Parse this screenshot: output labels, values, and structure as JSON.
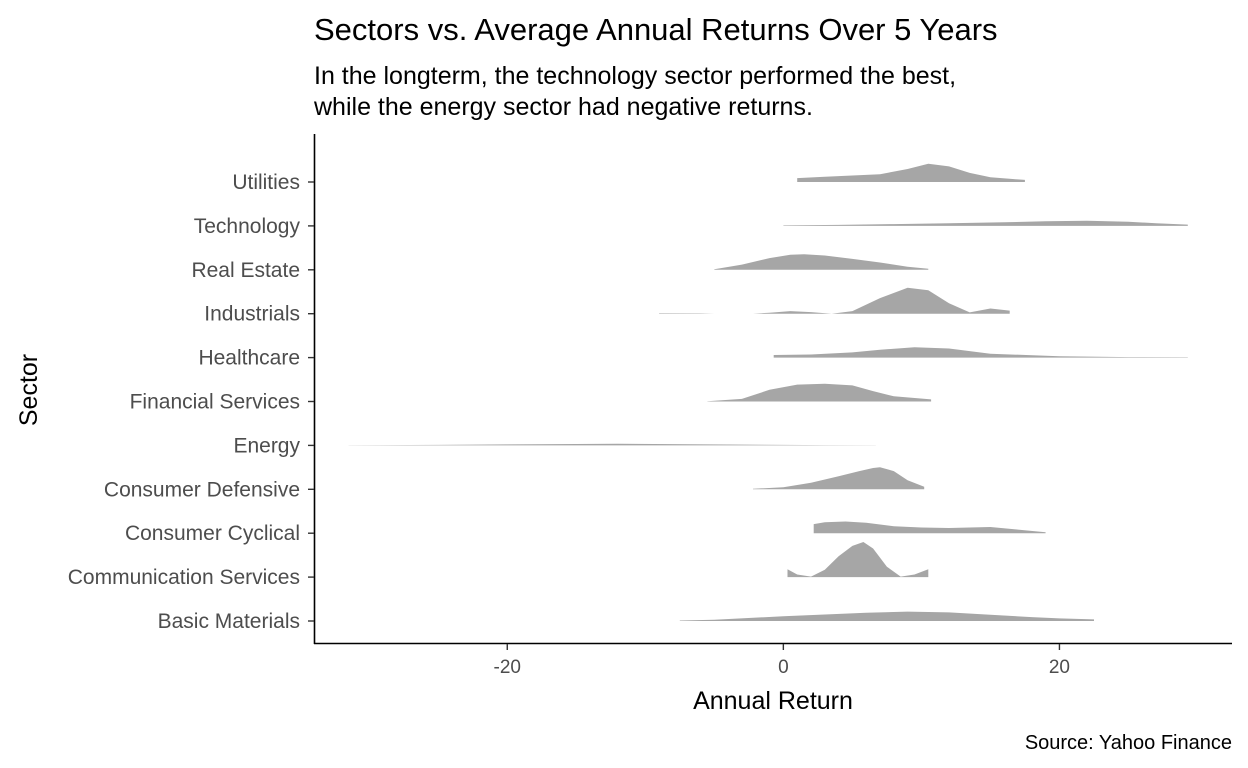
{
  "chart_data": {
    "type": "ridgeline",
    "title": "Sectors vs. Average Annual Returns Over 5 Years",
    "subtitle_lines": [
      "In the longterm, the technology sector performed the best,",
      "while the energy sector had negative returns."
    ],
    "xlabel": "Annual Return",
    "ylabel": "Sector",
    "caption": "Source: Yahoo Finance",
    "xlim": [
      -34,
      32.5
    ],
    "xticks": [
      -20,
      0,
      20
    ],
    "fill_color": "#a6a6a6",
    "grid": false,
    "legend": "none",
    "series": [
      {
        "name": "Basic Materials",
        "x": [
          -7.5,
          -5,
          0,
          3,
          6,
          9,
          12,
          15,
          18,
          20,
          22.5
        ],
        "density": [
          0.02,
          0.05,
          0.18,
          0.25,
          0.32,
          0.36,
          0.33,
          0.24,
          0.15,
          0.1,
          0.06
        ]
      },
      {
        "name": "Communication Services",
        "x": [
          0.3,
          1,
          2,
          3,
          4,
          5,
          5.8,
          6.5,
          7.5,
          8.5,
          9.5,
          10.5
        ],
        "density": [
          0.3,
          0.1,
          0.02,
          0.28,
          0.8,
          1.2,
          1.35,
          1.1,
          0.4,
          0.02,
          0.1,
          0.3
        ]
      },
      {
        "name": "Consumer Cyclical",
        "x": [
          2.2,
          3,
          4.5,
          6,
          8,
          10,
          12,
          15,
          17,
          19
        ],
        "density": [
          0.35,
          0.42,
          0.45,
          0.4,
          0.27,
          0.22,
          0.2,
          0.24,
          0.14,
          0.04
        ]
      },
      {
        "name": "Consumer Defensive",
        "x": [
          -2.2,
          0,
          2,
          4,
          5.5,
          6.5,
          7,
          8,
          9,
          10.2
        ],
        "density": [
          0.02,
          0.08,
          0.25,
          0.5,
          0.7,
          0.82,
          0.85,
          0.7,
          0.35,
          0.1
        ]
      },
      {
        "name": "Energy",
        "x": [
          -31.5,
          -25,
          -20,
          -15,
          -12,
          -8,
          -4,
          0,
          3,
          6.7
        ],
        "density": [
          0.005,
          0.02,
          0.04,
          0.055,
          0.06,
          0.05,
          0.035,
          0.02,
          0.01,
          0.005
        ]
      },
      {
        "name": "Financial Services",
        "x": [
          -5.5,
          -3,
          -1,
          1,
          3,
          5,
          6.5,
          8,
          10.7
        ],
        "density": [
          0.01,
          0.1,
          0.45,
          0.65,
          0.68,
          0.62,
          0.4,
          0.2,
          0.08
        ]
      },
      {
        "name": "Healthcare",
        "x": [
          -0.7,
          2,
          5,
          7,
          9.5,
          12,
          15,
          20,
          25,
          29.3
        ],
        "density": [
          0.1,
          0.12,
          0.2,
          0.3,
          0.4,
          0.35,
          0.15,
          0.05,
          0.02,
          0.01
        ]
      },
      {
        "name": "Industrials",
        "x": [
          -9,
          -6,
          -5,
          -2.2,
          -1,
          0.5,
          2,
          3.5,
          5,
          7,
          9,
          10.5,
          12,
          13.5,
          15,
          16.4
        ],
        "density": [
          0.02,
          0.01,
          0.0,
          0.0,
          0.04,
          0.1,
          0.06,
          0.0,
          0.1,
          0.6,
          1.0,
          0.9,
          0.4,
          0.05,
          0.2,
          0.12
        ]
      },
      {
        "name": "Real Estate",
        "x": [
          -5,
          -3,
          -1,
          0.5,
          1.5,
          3,
          5,
          7,
          9,
          10.5
        ],
        "density": [
          0.02,
          0.2,
          0.45,
          0.58,
          0.6,
          0.55,
          0.42,
          0.28,
          0.12,
          0.04
        ]
      },
      {
        "name": "Technology",
        "x": [
          0,
          4,
          8,
          12,
          16,
          19,
          22,
          25,
          27,
          29.3
        ],
        "density": [
          0.02,
          0.04,
          0.07,
          0.1,
          0.14,
          0.18,
          0.2,
          0.16,
          0.1,
          0.05
        ]
      },
      {
        "name": "Utilities",
        "x": [
          1,
          3,
          5,
          7,
          9,
          10.5,
          12,
          13.5,
          15,
          16.5,
          17.5
        ],
        "density": [
          0.15,
          0.2,
          0.25,
          0.3,
          0.5,
          0.7,
          0.6,
          0.35,
          0.18,
          0.12,
          0.08
        ]
      }
    ]
  }
}
